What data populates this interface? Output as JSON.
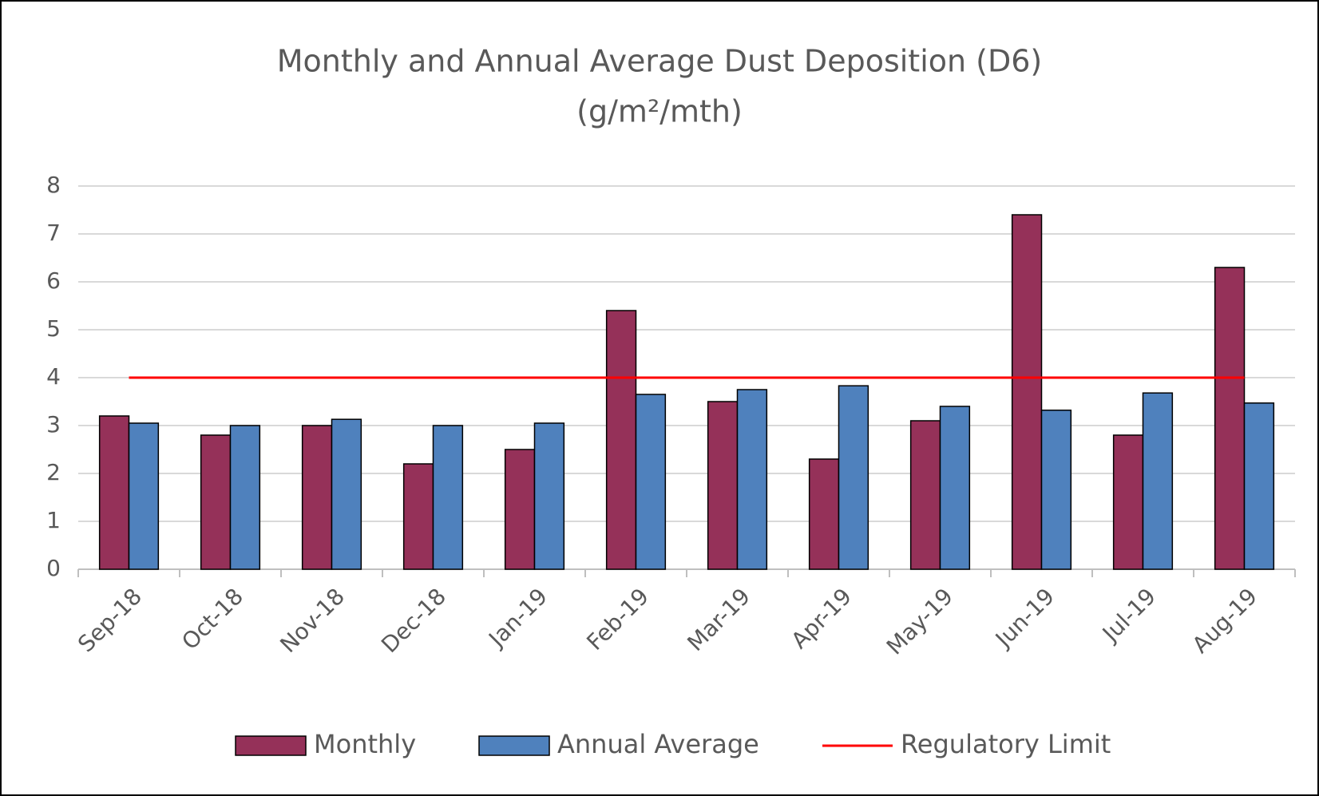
{
  "chart_data": {
    "type": "bar",
    "title": "Monthly and Annual Average Dust Deposition (D6)",
    "subtitle": "(g/m²/mth)",
    "categories": [
      "Sep-18",
      "Oct-18",
      "Nov-18",
      "Dec-18",
      "Jan-19",
      "Feb-19",
      "Mar-19",
      "Apr-19",
      "May-19",
      "Jun-19",
      "Jul-19",
      "Aug-19"
    ],
    "series": [
      {
        "name": "Monthly",
        "type": "bar",
        "color": "#953159",
        "values": [
          3.2,
          2.8,
          3.0,
          2.2,
          2.5,
          5.4,
          3.5,
          2.3,
          3.1,
          7.4,
          2.8,
          6.3
        ]
      },
      {
        "name": "Annual Average",
        "type": "bar",
        "color": "#4f81bd",
        "values": [
          3.05,
          3.0,
          3.13,
          3.0,
          3.05,
          3.65,
          3.75,
          3.83,
          3.4,
          3.32,
          3.68,
          3.47
        ]
      },
      {
        "name": "Regulatory Limit",
        "type": "line",
        "color": "#ff0000",
        "values": [
          4,
          4,
          4,
          4,
          4,
          4,
          4,
          4,
          4,
          4,
          4,
          4
        ]
      }
    ],
    "ylim": [
      0,
      8
    ],
    "yticks": [
      0,
      1,
      2,
      3,
      4,
      5,
      6,
      7,
      8
    ],
    "grid": true,
    "legend": "bottom"
  }
}
